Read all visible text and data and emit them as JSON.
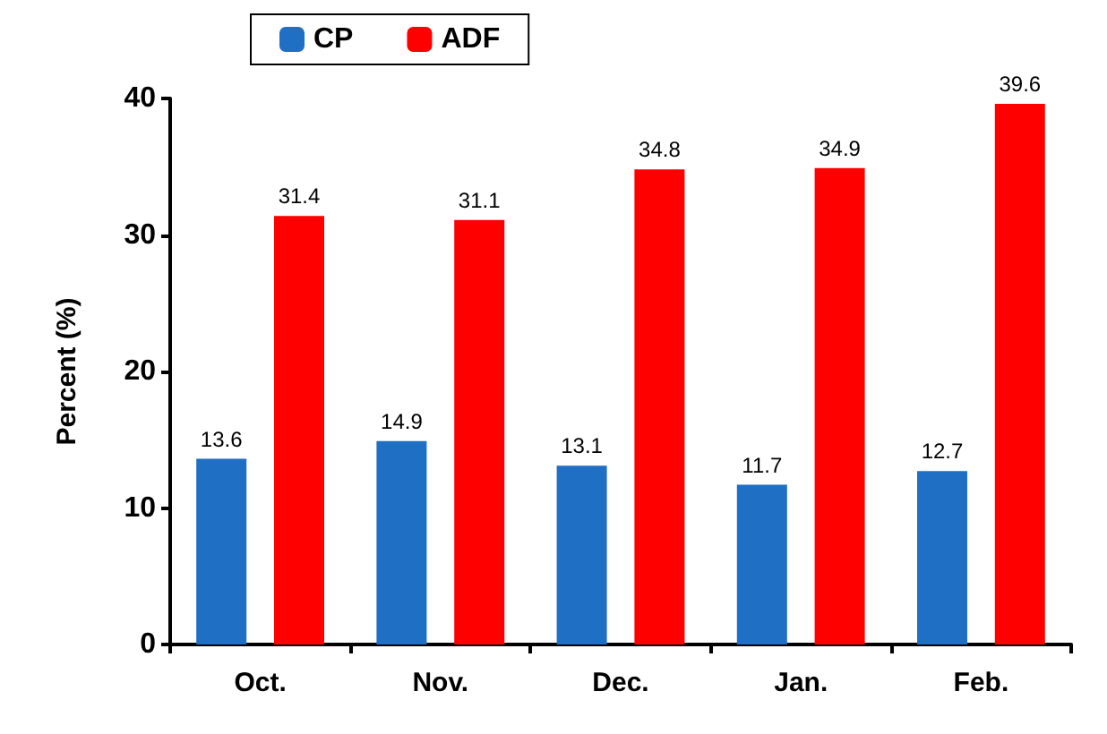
{
  "chart_data": {
    "type": "bar",
    "ylabel": "Percent (%)",
    "categories": [
      "Oct.",
      "Nov.",
      "Dec.",
      "Jan.",
      "Feb."
    ],
    "series": [
      {
        "name": "CP",
        "color": "#1f6fc5",
        "values": [
          13.6,
          14.9,
          13.1,
          11.7,
          12.7
        ]
      },
      {
        "name": "ADF",
        "color": "#ff0000",
        "values": [
          31.4,
          31.1,
          34.8,
          34.9,
          39.6
        ]
      }
    ],
    "ylim": [
      0,
      40
    ],
    "yticks": [
      0,
      10,
      20,
      30,
      40
    ],
    "grid": false,
    "legend": "top left",
    "data_labels": true
  }
}
